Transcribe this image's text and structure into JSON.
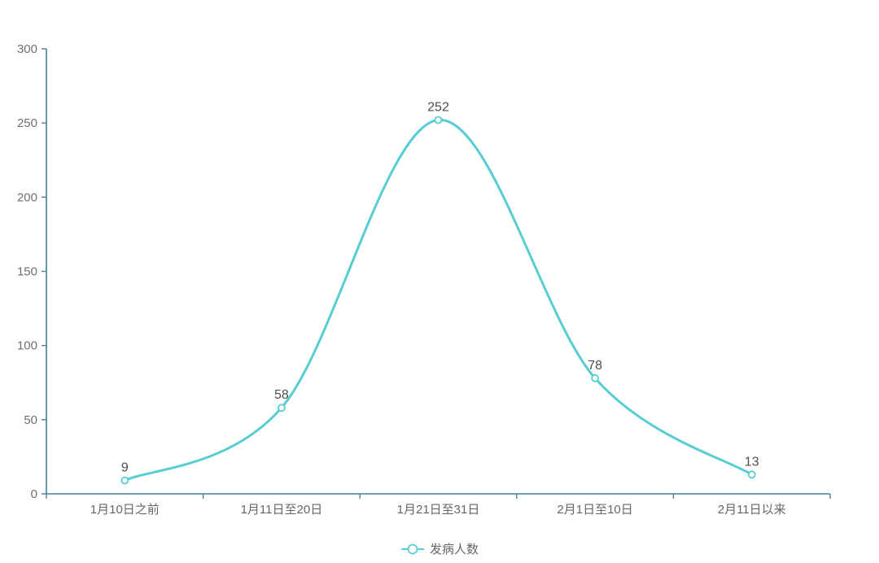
{
  "chart_data": {
    "type": "line",
    "title": "",
    "categories": [
      "1月10日之前",
      "1月11日至20日",
      "1月21日至31日",
      "2月1日至10日",
      "2月11日以来"
    ],
    "series": [
      {
        "name": "发病人数",
        "values": [
          9,
          58,
          252,
          78,
          13
        ]
      }
    ],
    "xlabel": "",
    "ylabel": "",
    "ylim": [
      0,
      300
    ],
    "y_ticks": [
      0,
      50,
      100,
      150,
      200,
      250,
      300
    ],
    "smooth": true,
    "show_point_labels": true,
    "point_labels": [
      "9",
      "58",
      "252",
      "78",
      "13"
    ],
    "grid": false,
    "legend_position": "bottom-center",
    "colors": {
      "line": "#58cdd3",
      "marker_fill": "#ffffff",
      "axis": "#4a8193",
      "axis_tick_label": "#6f6f6f",
      "data_label": "#4d4d4d",
      "legend_text": "#666666",
      "background": "#ffffff"
    }
  },
  "legend": {
    "icon": "line-circle-icon",
    "items": [
      {
        "label": "发病人数"
      }
    ]
  }
}
